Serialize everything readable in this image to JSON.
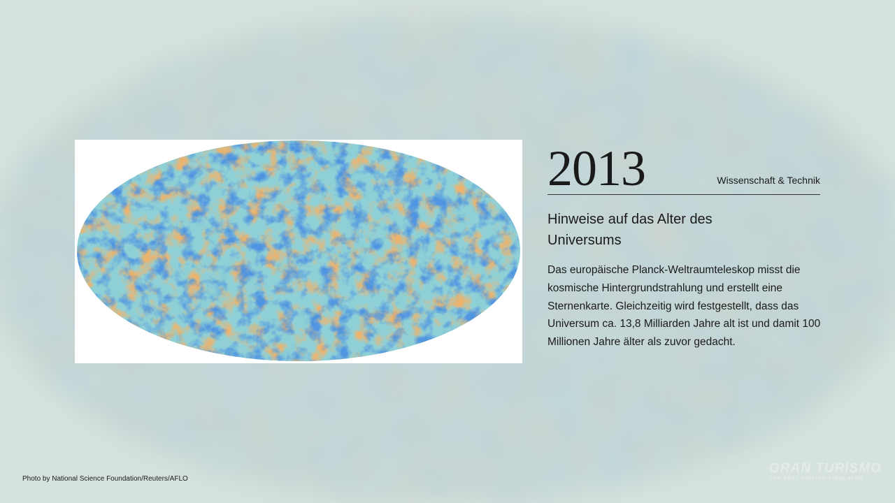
{
  "entry": {
    "year": "2013",
    "category": "Wissenschaft & Technik",
    "heading": "Hinweise auf das Alter des Universums",
    "body": "Das europäische Planck-Weltraumteleskop misst die kosmische Hintergrundstrahlung und erstellt eine Sternenkarte. Gleichzeitig wird festgestellt, dass das Universum ca. 13,8 Milliarden Jahre alt ist und damit 100 Millionen Jahre älter als zuvor gedacht."
  },
  "credit": "Photo by National Science Foundation/Reuters/AFLO",
  "logo": {
    "title": "GRAN TURISMO",
    "subtitle": "THE REAL DRIVING SIMULATOR"
  }
}
